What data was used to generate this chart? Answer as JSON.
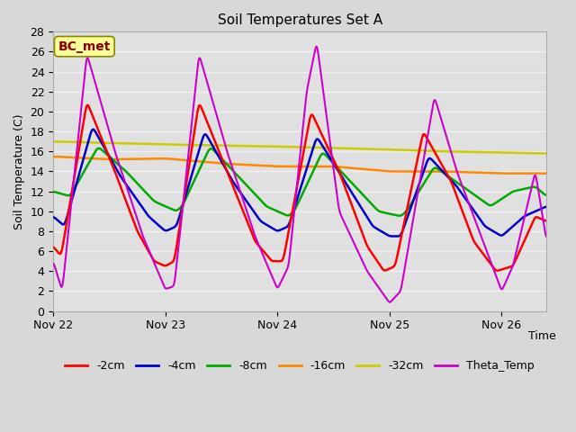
{
  "title": "Soil Temperatures Set A",
  "xlabel": "Time",
  "ylabel": "Soil Temperature (C)",
  "ylim": [
    0,
    28
  ],
  "yticks": [
    0,
    2,
    4,
    6,
    8,
    10,
    12,
    14,
    16,
    18,
    20,
    22,
    24,
    26,
    28
  ],
  "xlim_days": [
    0,
    4.4
  ],
  "xtick_positions": [
    0,
    1,
    2,
    3,
    4
  ],
  "xtick_labels": [
    "Nov 22",
    "Nov 23",
    "Nov 24",
    "Nov 25",
    "Nov 26"
  ],
  "bg_color": "#d8d8d8",
  "plot_bg_color": "#e0e0e0",
  "grid_color": "#f0f0f0",
  "annotation_text": "BC_met",
  "annotation_color": "#8b0000",
  "annotation_bg": "#ffff99",
  "series_colors": {
    "2cm": "#ff0000",
    "4cm": "#0000cc",
    "8cm": "#00aa00",
    "16cm": "#ff8800",
    "32cm": "#cccc00",
    "theta": "#cc00cc"
  },
  "legend_labels": [
    "-2cm",
    "-4cm",
    "-8cm",
    "-16cm",
    "-32cm",
    "Theta_Temp"
  ]
}
